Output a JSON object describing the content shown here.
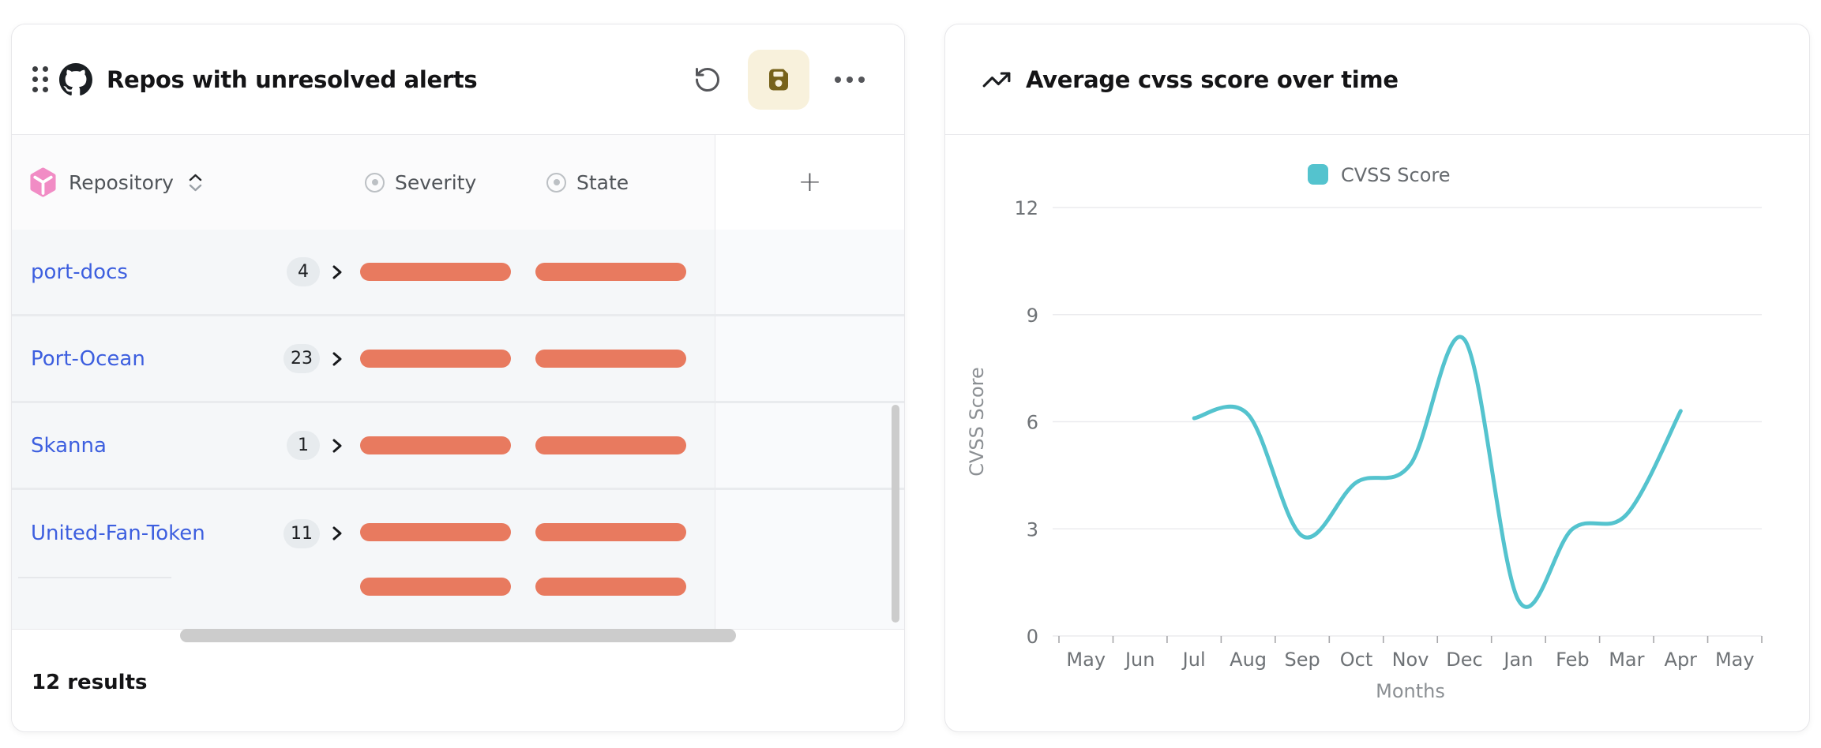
{
  "alerts_widget": {
    "title": "Repos with unresolved alerts",
    "toolbar": {
      "undo_icon": "rotate-ccw",
      "save_icon": "floppy-disk",
      "more_icon": "ellipsis-dots"
    },
    "drag_handle_icon": "six-dots",
    "source_icon": "github-mark",
    "columns": [
      {
        "label": "Repository",
        "icon": "pink-cube",
        "sortable": true
      },
      {
        "label": "Severity",
        "icon": "radio-circle"
      },
      {
        "label": "State",
        "icon": "radio-circle"
      }
    ],
    "add_column_label": "+",
    "rows": [
      {
        "repo": "port-docs",
        "alert_count": "4",
        "bar_rows": 1
      },
      {
        "repo": "Port-Ocean",
        "alert_count": "23",
        "bar_rows": 1
      },
      {
        "repo": "Skanna",
        "alert_count": "1",
        "bar_rows": 1
      },
      {
        "repo": "United-Fan-Token",
        "alert_count": "11",
        "bar_rows": 2
      }
    ],
    "footer": "12 results"
  },
  "chart_widget": {
    "title_icon": "trending-up"
  },
  "chart_data": {
    "type": "line",
    "title": "Average cvss score over time",
    "xlabel": "Months",
    "ylabel": "CVSS Score",
    "ylim": [
      0,
      12
    ],
    "yticks": [
      0,
      3,
      6,
      9,
      12
    ],
    "categories": [
      "May",
      "Jun",
      "Jul",
      "Aug",
      "Sep",
      "Oct",
      "Nov",
      "Dec",
      "Jan",
      "Feb",
      "Mar",
      "Apr",
      "May"
    ],
    "grid": true,
    "legend_position": "top",
    "series": [
      {
        "name": "CVSS Score",
        "color": "#54c3ce",
        "points": [
          {
            "x": "Jul",
            "y": 6.1
          },
          {
            "x": "Aug",
            "y": 6.2
          },
          {
            "x": "Sep",
            "y": 2.8
          },
          {
            "x": "Oct",
            "y": 4.3
          },
          {
            "x": "Nov",
            "y": 4.8
          },
          {
            "x": "Dec",
            "y": 8.3
          },
          {
            "x": "Jan",
            "y": 1.0
          },
          {
            "x": "Feb",
            "y": 3.0
          },
          {
            "x": "Mar",
            "y": 3.4
          },
          {
            "x": "Apr",
            "y": 6.3
          }
        ]
      }
    ]
  },
  "colors": {
    "link-blue": "#3d5fdf",
    "bar-coral": "#e87a5f",
    "teal": "#54c3ce",
    "save-bg": "#f8f1dc",
    "save-icon": "#77621b",
    "pink-icon": "#f18cc5",
    "row-bg": "#f5f7f9",
    "badge-bg": "#e7ebee",
    "scrollbar": "#cccccc"
  }
}
